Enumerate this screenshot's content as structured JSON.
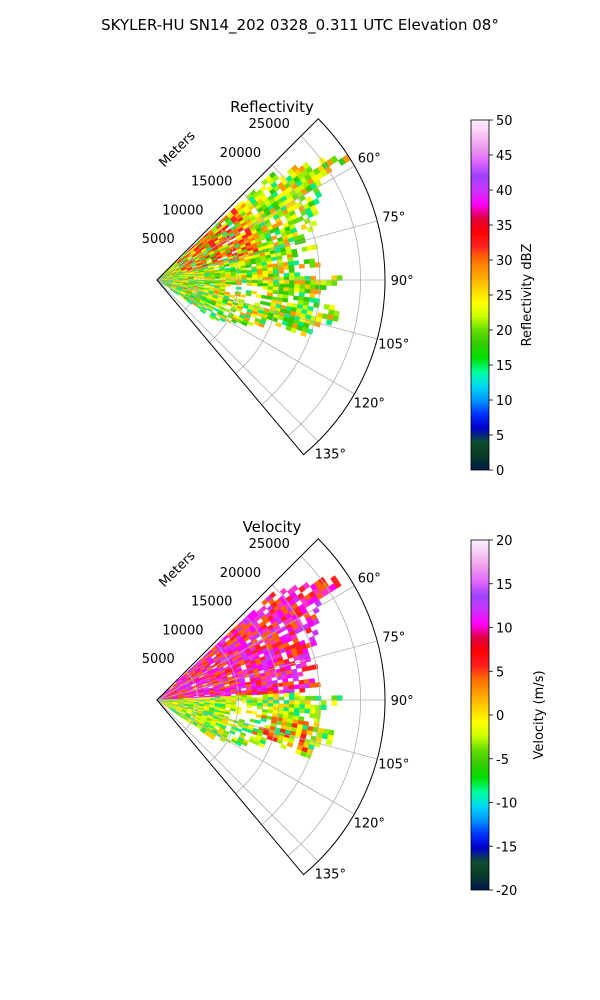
{
  "figure": {
    "title": "SKYLER-HU  SN14_202  0328_0.311 UTC Elevation 08°"
  },
  "colors": {
    "grid": "#b0b0b0",
    "axis": "#000000",
    "background": "#ffffff"
  },
  "chart_data": [
    {
      "type": "polar_sector",
      "title": "Reflectivity",
      "radial_label": "Meters",
      "theta_range_deg": [
        45,
        140
      ],
      "r_max": 28000,
      "r_ticks": [
        5000,
        10000,
        15000,
        20000,
        25000
      ],
      "r_tick_labels": [
        "5000",
        "10000",
        "15000",
        "20000",
        "25000"
      ],
      "theta_ticks": [
        60,
        75,
        90,
        105,
        120,
        135
      ],
      "theta_tick_labels": [
        "60°",
        "75°",
        "90°",
        "105°",
        "120°",
        "135°"
      ],
      "grid": true,
      "colorbar": {
        "label": "Reflectivity dBZ",
        "min": 0,
        "max": 50,
        "ticks": [
          0,
          5,
          10,
          15,
          20,
          25,
          30,
          35,
          40,
          45,
          50
        ],
        "tick_labels": [
          "0",
          "5",
          "10",
          "15",
          "20",
          "25",
          "30",
          "35",
          "40",
          "45",
          "50"
        ],
        "stops": [
          "#00194d",
          "#0a3a2a",
          "#0d4d2d",
          "#0000cc",
          "#0033ff",
          "#0099ff",
          "#00d9f5",
          "#00ff99",
          "#00e000",
          "#33cc00",
          "#66dd00",
          "#ccff00",
          "#ffff00",
          "#ffd000",
          "#ffa000",
          "#ff7000",
          "#ff2020",
          "#ff0000",
          "#e00040",
          "#ff00ff",
          "#cc33ff",
          "#a040ff",
          "#e066ff",
          "#ee99ee",
          "#f5c8f5",
          "#fff0ff"
        ]
      },
      "data_description": "Echo filled sector from ~50° to ~120° azimuth; values mostly 15-35 dBZ",
      "echo_mix": [
        "#66dd00",
        "#99ee00",
        "#ccff00",
        "#ffff00",
        "#ffd000",
        "#ff9900",
        "#33cc00",
        "#00ee80"
      ]
    },
    {
      "type": "polar_sector",
      "title": "Velocity",
      "radial_label": "Meters",
      "theta_range_deg": [
        45,
        140
      ],
      "r_max": 28000,
      "r_ticks": [
        5000,
        10000,
        15000,
        20000,
        25000
      ],
      "r_tick_labels": [
        "5000",
        "10000",
        "15000",
        "20000",
        "25000"
      ],
      "theta_ticks": [
        60,
        75,
        90,
        105,
        120,
        135
      ],
      "theta_tick_labels": [
        "60°",
        "75°",
        "90°",
        "105°",
        "120°",
        "135°"
      ],
      "grid": true,
      "colorbar": {
        "label": "Velocity (m/s)",
        "min": -20,
        "max": 20,
        "ticks": [
          -20,
          -15,
          -10,
          -5,
          0,
          5,
          10,
          15,
          20
        ],
        "tick_labels": [
          "-20",
          "-15",
          "-10",
          "-5",
          "0",
          "5",
          "10",
          "15",
          "20"
        ],
        "stops": [
          "#00194d",
          "#0a3a2a",
          "#0d4d2d",
          "#0000cc",
          "#0033ff",
          "#0099ff",
          "#00d9f5",
          "#00ff99",
          "#00e000",
          "#33cc00",
          "#66dd00",
          "#ccff00",
          "#ffff00",
          "#ffd000",
          "#ffa000",
          "#ff7000",
          "#ff2020",
          "#ff0000",
          "#e00040",
          "#ff00ff",
          "#cc33ff",
          "#a040ff",
          "#e066ff",
          "#ee99ee",
          "#f5c8f5",
          "#fff0ff"
        ]
      },
      "data_description": "Outbound (+10 to +15 m/s) north of 85°, near-zero / slightly inbound to the south",
      "echo_mix_north": [
        "#ff00ff",
        "#cc33ff",
        "#ff33cc",
        "#ff2020",
        "#ff6000"
      ],
      "echo_mix_south": [
        "#ffff00",
        "#ffd000",
        "#ccff00",
        "#99ee00",
        "#66dd00",
        "#00ee80"
      ]
    }
  ]
}
